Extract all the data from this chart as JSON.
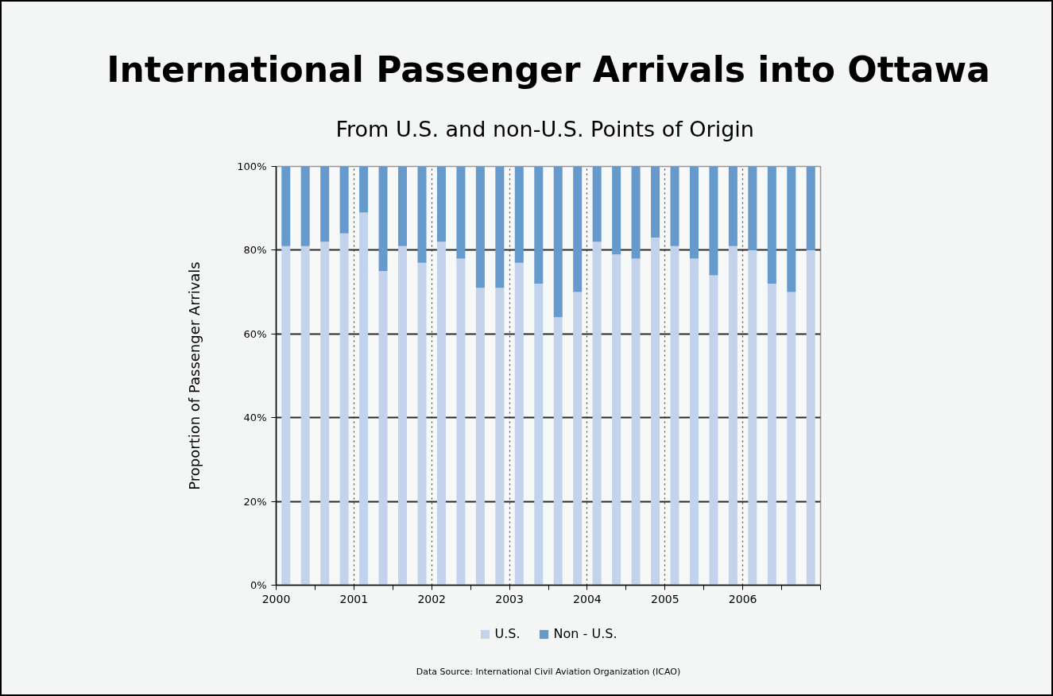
{
  "chart_data": {
    "type": "bar",
    "title": "International Passenger Arrivals into Ottawa",
    "subtitle": "From  U.S. and non-U.S. Points of Origin",
    "ylabel": "Proportion of Passenger Arrivals",
    "annotations": [
      "Data Source: International Civil Aviation Organization (ICAO)"
    ],
    "x": [
      2000.125,
      2000.375,
      2000.625,
      2000.875,
      2001.125,
      2001.375,
      2001.625,
      2001.875,
      2002.125,
      2002.375,
      2002.625,
      2002.875,
      2003.125,
      2003.375,
      2003.625,
      2003.875,
      2004.125,
      2004.375,
      2004.625,
      2004.875,
      2005.125,
      2005.375,
      2005.625,
      2005.875,
      2006.125,
      2006.375,
      2006.625,
      2006.875
    ],
    "stacked": true,
    "series": [
      {
        "name": "U.S.",
        "color": "#c3d3ec",
        "values": [
          81,
          81,
          82,
          84,
          89,
          75,
          81,
          77,
          82,
          78,
          71,
          71,
          77,
          72,
          64,
          70,
          82,
          79,
          78,
          83,
          81,
          78,
          74,
          81,
          80,
          72,
          70,
          80
        ]
      },
      {
        "name": "Non - U.S.",
        "color": "#6699cc",
        "values": [
          19,
          19,
          18,
          16,
          11,
          25,
          19,
          23,
          18,
          22,
          29,
          29,
          23,
          28,
          36,
          30,
          18,
          21,
          22,
          17,
          19,
          22,
          26,
          19,
          20,
          28,
          30,
          20
        ]
      }
    ],
    "xlim": [
      2000,
      2007
    ],
    "xticks": [
      2000,
      {
        "value": 2000.5,
        "label": null
      },
      2001,
      {
        "value": 2001.5,
        "label": null
      },
      2002,
      {
        "value": 2002.5,
        "label": null
      },
      2003,
      {
        "value": 2003.5,
        "label": null
      },
      2004,
      {
        "value": 2004.5,
        "label": null
      },
      2005,
      {
        "value": 2005.5,
        "label": null
      },
      2006,
      {
        "value": 2006.5,
        "label": null
      },
      {
        "value": 2007,
        "label": null
      }
    ],
    "ylim": [
      0,
      100
    ],
    "yticks": [
      {
        "value": 0,
        "label": "0%"
      },
      {
        "value": 20,
        "label": "20%"
      },
      {
        "value": 40,
        "label": "40%"
      },
      {
        "value": 60,
        "label": "60%"
      },
      {
        "value": 80,
        "label": "80%"
      },
      {
        "value": 100,
        "label": "100%"
      }
    ],
    "grid": true,
    "legend": "bottom"
  }
}
